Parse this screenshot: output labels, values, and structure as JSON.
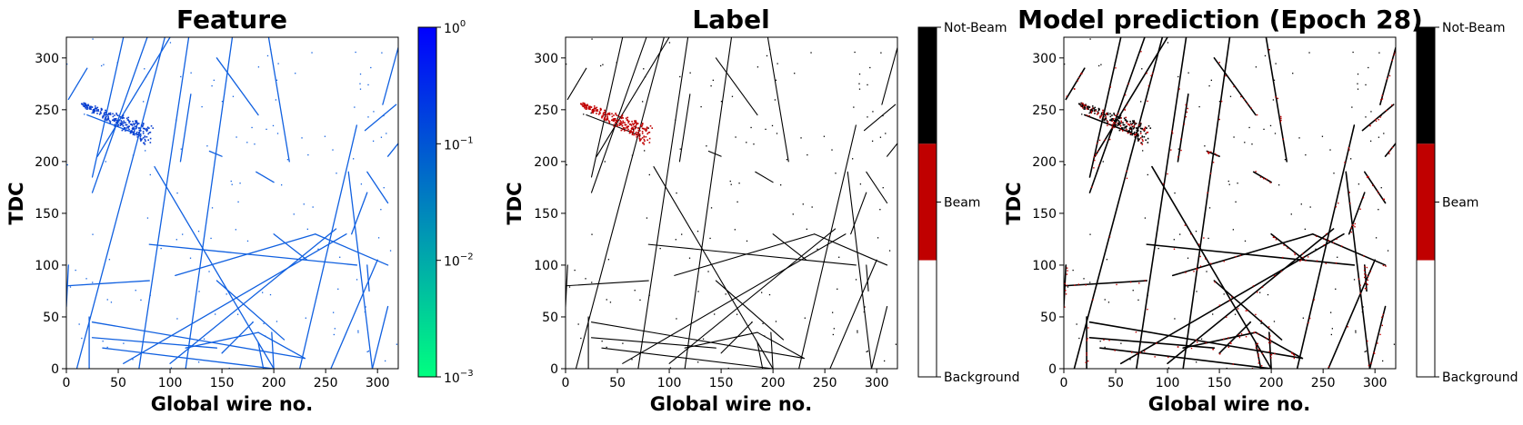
{
  "colors": {
    "feature_track": "#1060e0",
    "feature_dense": "#0a3fd0",
    "beam_red": "#c00000",
    "not_beam": "#000000",
    "background": "#ffffff",
    "cmap_low": "#00ff80",
    "cmap_high": "#0000ff"
  },
  "chart_data": [
    {
      "type": "heatmap",
      "title": "Feature",
      "xlabel": "Global wire no.",
      "ylabel": "TDC",
      "xlim": [
        0,
        320
      ],
      "ylim": [
        0,
        320
      ],
      "xticks": [
        "0",
        "50",
        "100",
        "150",
        "200",
        "250",
        "300"
      ],
      "yticks": [
        "0",
        "50",
        "100",
        "150",
        "200",
        "250",
        "300"
      ],
      "colorbar": {
        "scale": "log",
        "range": [
          0.001,
          1
        ],
        "ticks": [
          {
            "base": "10",
            "exp": "0"
          },
          {
            "base": "10",
            "exp": "−1"
          },
          {
            "base": "10",
            "exp": "−2"
          },
          {
            "base": "10",
            "exp": "−3"
          }
        ]
      }
    },
    {
      "type": "heatmap",
      "title": "Label",
      "xlabel": "Global wire no.",
      "ylabel": "TDC",
      "xlim": [
        0,
        320
      ],
      "ylim": [
        0,
        320
      ],
      "xticks": [
        "0",
        "50",
        "100",
        "150",
        "200",
        "250",
        "300"
      ],
      "yticks": [
        "0",
        "50",
        "100",
        "150",
        "200",
        "250",
        "300"
      ],
      "colorbar": {
        "scale": "categorical",
        "categories": [
          "Not-Beam",
          "Beam",
          "Background"
        ]
      }
    },
    {
      "type": "heatmap",
      "title": "Model prediction (Epoch 28)",
      "xlabel": "Global wire no.",
      "ylabel": "TDC",
      "xlim": [
        0,
        320
      ],
      "ylim": [
        0,
        320
      ],
      "xticks": [
        "0",
        "50",
        "100",
        "150",
        "200",
        "250",
        "300"
      ],
      "yticks": [
        "0",
        "50",
        "100",
        "150",
        "200",
        "250",
        "300"
      ],
      "colorbar": {
        "scale": "categorical",
        "categories": [
          "Not-Beam",
          "Beam",
          "Background"
        ]
      }
    }
  ],
  "tracks": [
    [
      [
        10,
        0
      ],
      [
        95,
        320
      ]
    ],
    [
      [
        70,
        0
      ],
      [
        118,
        320
      ]
    ],
    [
      [
        115,
        0
      ],
      [
        160,
        320
      ]
    ],
    [
      [
        225,
        0
      ],
      [
        280,
        235
      ]
    ],
    [
      [
        255,
        0
      ],
      [
        300,
        105
      ]
    ],
    [
      [
        295,
        0
      ],
      [
        310,
        60
      ]
    ],
    [
      [
        295,
        0
      ],
      [
        272,
        190
      ]
    ],
    [
      [
        292,
        75
      ],
      [
        290,
        100
      ]
    ],
    [
      [
        55,
        320
      ],
      [
        25,
        185
      ]
    ],
    [
      [
        20,
        290
      ],
      [
        2,
        260
      ]
    ],
    [
      [
        100,
        320
      ],
      [
        30,
        205
      ]
    ],
    [
      [
        78,
        320
      ],
      [
        25,
        170
      ]
    ],
    [
      [
        145,
        300
      ],
      [
        185,
        245
      ]
    ],
    [
      [
        120,
        265
      ],
      [
        110,
        200
      ]
    ],
    [
      [
        195,
        320
      ],
      [
        215,
        200
      ]
    ],
    [
      [
        288,
        230
      ],
      [
        318,
        255
      ]
    ],
    [
      [
        310,
        205
      ],
      [
        322,
        220
      ]
    ],
    [
      [
        305,
        255
      ],
      [
        320,
        310
      ]
    ],
    [
      [
        290,
        190
      ],
      [
        310,
        160
      ]
    ],
    [
      [
        0,
        80
      ],
      [
        80,
        85
      ]
    ],
    [
      [
        85,
        195
      ],
      [
        200,
        0
      ]
    ],
    [
      [
        80,
        120
      ],
      [
        280,
        100
      ]
    ],
    [
      [
        105,
        90
      ],
      [
        240,
        130
      ]
    ],
    [
      [
        240,
        130
      ],
      [
        310,
        100
      ]
    ],
    [
      [
        55,
        5
      ],
      [
        270,
        130
      ]
    ],
    [
      [
        100,
        5
      ],
      [
        260,
        135
      ]
    ],
    [
      [
        25,
        45
      ],
      [
        230,
        10
      ]
    ],
    [
      [
        35,
        20
      ],
      [
        200,
        0
      ]
    ],
    [
      [
        25,
        30
      ],
      [
        145,
        20
      ]
    ],
    [
      [
        115,
        20
      ],
      [
        185,
        35
      ]
    ],
    [
      [
        185,
        35
      ],
      [
        230,
        10
      ]
    ],
    [
      [
        150,
        15
      ],
      [
        180,
        45
      ]
    ],
    [
      [
        200,
        0
      ],
      [
        198,
        35
      ]
    ],
    [
      [
        185,
        25
      ],
      [
        190,
        0
      ]
    ],
    [
      [
        145,
        85
      ],
      [
        210,
        28
      ]
    ],
    [
      [
        200,
        130
      ],
      [
        232,
        105
      ]
    ],
    [
      [
        183,
        190
      ],
      [
        200,
        180
      ]
    ],
    [
      [
        20,
        245
      ],
      [
        72,
        225
      ]
    ],
    [
      [
        22,
        0
      ],
      [
        22,
        50
      ]
    ],
    [
      [
        0,
        60
      ],
      [
        2,
        100
      ]
    ],
    [
      [
        138,
        210
      ],
      [
        150,
        205
      ]
    ],
    [
      [
        275,
        130
      ],
      [
        290,
        170
      ]
    ]
  ],
  "beam_cluster": {
    "x0": 15,
    "y0": 256,
    "x1": 80,
    "y1": 226
  },
  "noise_seed": 7
}
